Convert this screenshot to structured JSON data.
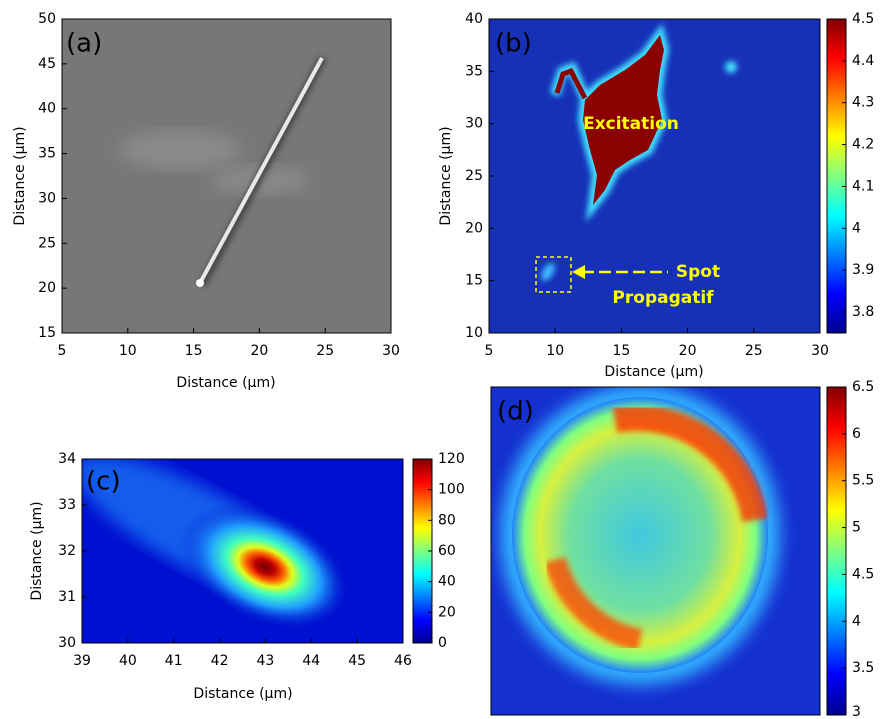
{
  "chart_data": [
    {
      "type": "image",
      "label": "(a)",
      "xlabel": "Distance (µm)",
      "ylabel": "Distance (µm)",
      "xlim": [
        5,
        30
      ],
      "xticks": [
        5,
        10,
        15,
        20,
        25,
        30
      ],
      "ylim": [
        15,
        50
      ],
      "yticks": [
        15,
        20,
        25,
        30,
        35,
        40,
        45,
        50
      ]
    },
    {
      "type": "heatmap",
      "label": "(b)",
      "xlabel": "Distance (µm)",
      "ylabel": "Distance (µm)",
      "xlim": [
        5,
        30
      ],
      "xticks": [
        5,
        10,
        15,
        20,
        25,
        30
      ],
      "ylim": [
        10,
        40
      ],
      "yticks": [
        10,
        15,
        20,
        25,
        30,
        35,
        40
      ],
      "clim": [
        3.75,
        4.5
      ],
      "cticks": [
        3.8,
        3.9,
        4,
        4.1,
        4.2,
        4.3,
        4.4,
        4.5
      ],
      "annotations": [
        "Excitation",
        "Spot",
        "Propagatif"
      ]
    },
    {
      "type": "heatmap",
      "label": "(c)",
      "xlabel": "Distance (µm)",
      "ylabel": "Distance (µm)",
      "xlim": [
        39,
        46
      ],
      "xticks": [
        39,
        40,
        41,
        42,
        43,
        44,
        45,
        46
      ],
      "ylim": [
        30,
        34
      ],
      "yticks": [
        30,
        31,
        32,
        33,
        34
      ],
      "clim": [
        0,
        120
      ],
      "cticks": [
        0,
        20,
        40,
        60,
        80,
        100,
        120
      ]
    },
    {
      "type": "heatmap",
      "label": "(d)",
      "clim": [
        3,
        6.5
      ],
      "cticks": [
        3,
        3.5,
        4,
        4.5,
        5,
        5.5,
        6,
        6.5
      ]
    }
  ]
}
